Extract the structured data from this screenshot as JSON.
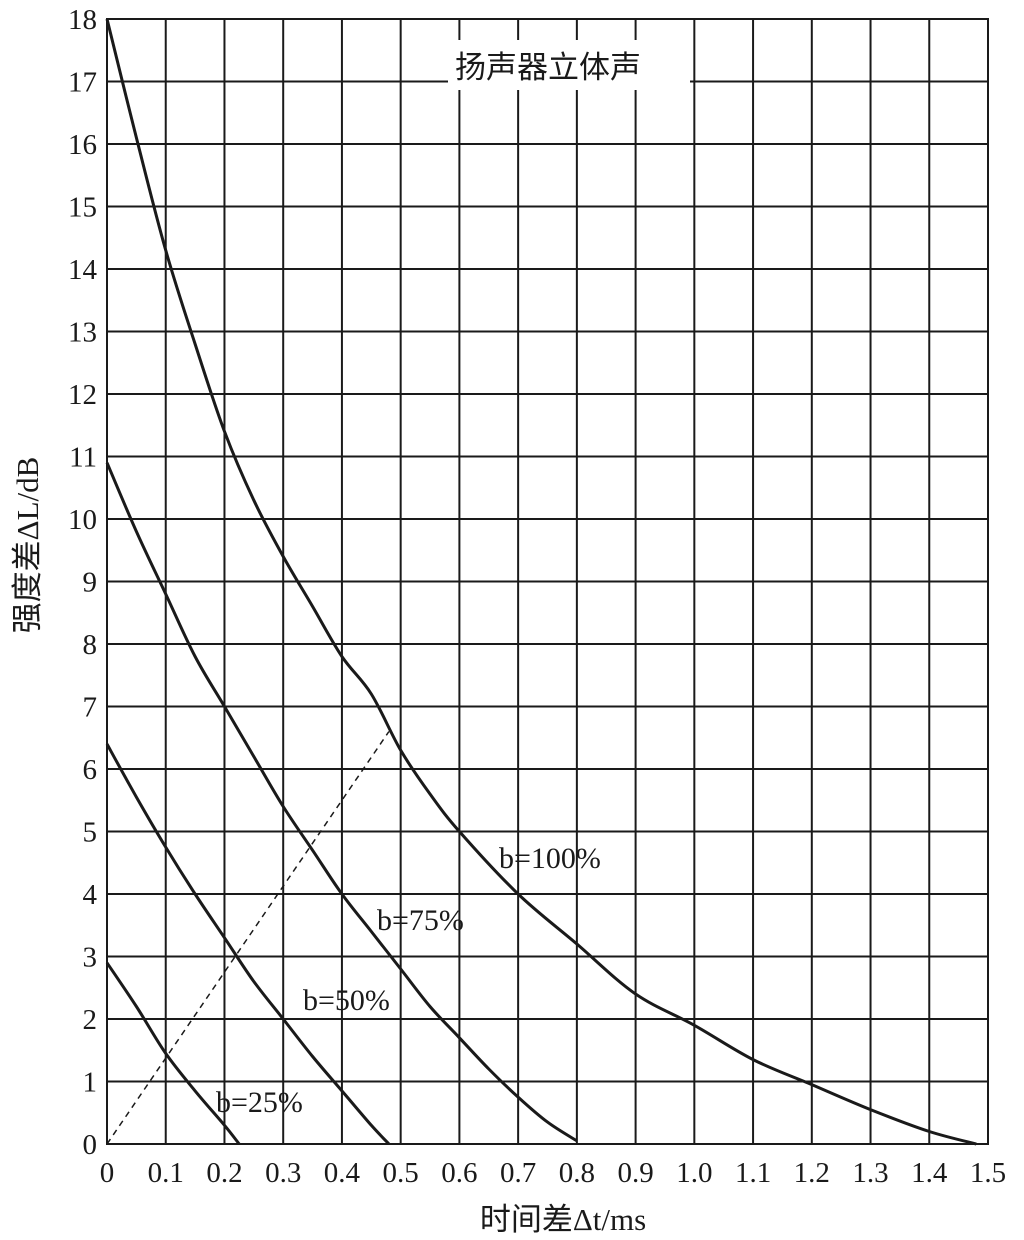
{
  "chart_data": {
    "type": "line",
    "title": "扬声器立体声",
    "xlabel": "时间差Δt/ms",
    "ylabel": "强度差ΔL/dB",
    "xlim": [
      0,
      1.5
    ],
    "ylim": [
      0,
      18
    ],
    "x_ticks": [
      0,
      0.1,
      0.2,
      0.3,
      0.4,
      0.5,
      0.6,
      0.7,
      0.8,
      0.9,
      1.0,
      1.1,
      1.2,
      1.3,
      1.4,
      1.5
    ],
    "x_tick_labels": [
      "0",
      "0.1",
      "0.2",
      "0.3",
      "0.4",
      "0.5",
      "0.6",
      "0.7",
      "0.8",
      "0.9",
      "1.0",
      "1.1",
      "1.2",
      "1.3",
      "1.4",
      "1.5"
    ],
    "y_ticks": [
      0,
      1,
      2,
      3,
      4,
      5,
      6,
      7,
      8,
      9,
      10,
      11,
      12,
      13,
      14,
      15,
      16,
      17,
      18
    ],
    "y_tick_labels": [
      "0",
      "1",
      "2",
      "3",
      "4",
      "5",
      "6",
      "7",
      "8",
      "9",
      "10",
      "11",
      "12",
      "13",
      "14",
      "15",
      "16",
      "17",
      "18"
    ],
    "grid": true,
    "series": [
      {
        "name": "b=100%",
        "x": [
          0,
          0.05,
          0.1,
          0.15,
          0.2,
          0.25,
          0.3,
          0.35,
          0.4,
          0.45,
          0.5,
          0.55,
          0.6,
          0.7,
          0.8,
          0.9,
          1.0,
          1.1,
          1.2,
          1.3,
          1.4,
          1.48
        ],
        "y": [
          18,
          16.1,
          14.3,
          12.8,
          11.4,
          10.3,
          9.4,
          8.6,
          7.8,
          7.2,
          6.3,
          5.6,
          5.0,
          4.0,
          3.2,
          2.4,
          1.9,
          1.35,
          0.95,
          0.55,
          0.2,
          0.0
        ]
      },
      {
        "name": "b=75%",
        "x": [
          0,
          0.05,
          0.1,
          0.15,
          0.2,
          0.25,
          0.3,
          0.35,
          0.4,
          0.45,
          0.5,
          0.55,
          0.6,
          0.65,
          0.7,
          0.75,
          0.8
        ],
        "y": [
          10.9,
          9.8,
          8.8,
          7.8,
          7.0,
          6.2,
          5.4,
          4.7,
          4.0,
          3.4,
          2.8,
          2.2,
          1.7,
          1.2,
          0.75,
          0.35,
          0.05
        ]
      },
      {
        "name": "b=50%",
        "x": [
          0,
          0.05,
          0.1,
          0.15,
          0.2,
          0.25,
          0.3,
          0.35,
          0.4,
          0.45,
          0.48
        ],
        "y": [
          6.4,
          5.55,
          4.75,
          4.0,
          3.3,
          2.6,
          2.0,
          1.4,
          0.85,
          0.3,
          0.0
        ]
      },
      {
        "name": "b=25%",
        "x": [
          0,
          0.05,
          0.1,
          0.15,
          0.2,
          0.225
        ],
        "y": [
          2.9,
          2.2,
          1.45,
          0.85,
          0.3,
          0.0
        ]
      }
    ],
    "reference_line": {
      "style": "dashed",
      "x": [
        0,
        0.48
      ],
      "y": [
        0,
        6.6
      ]
    }
  }
}
